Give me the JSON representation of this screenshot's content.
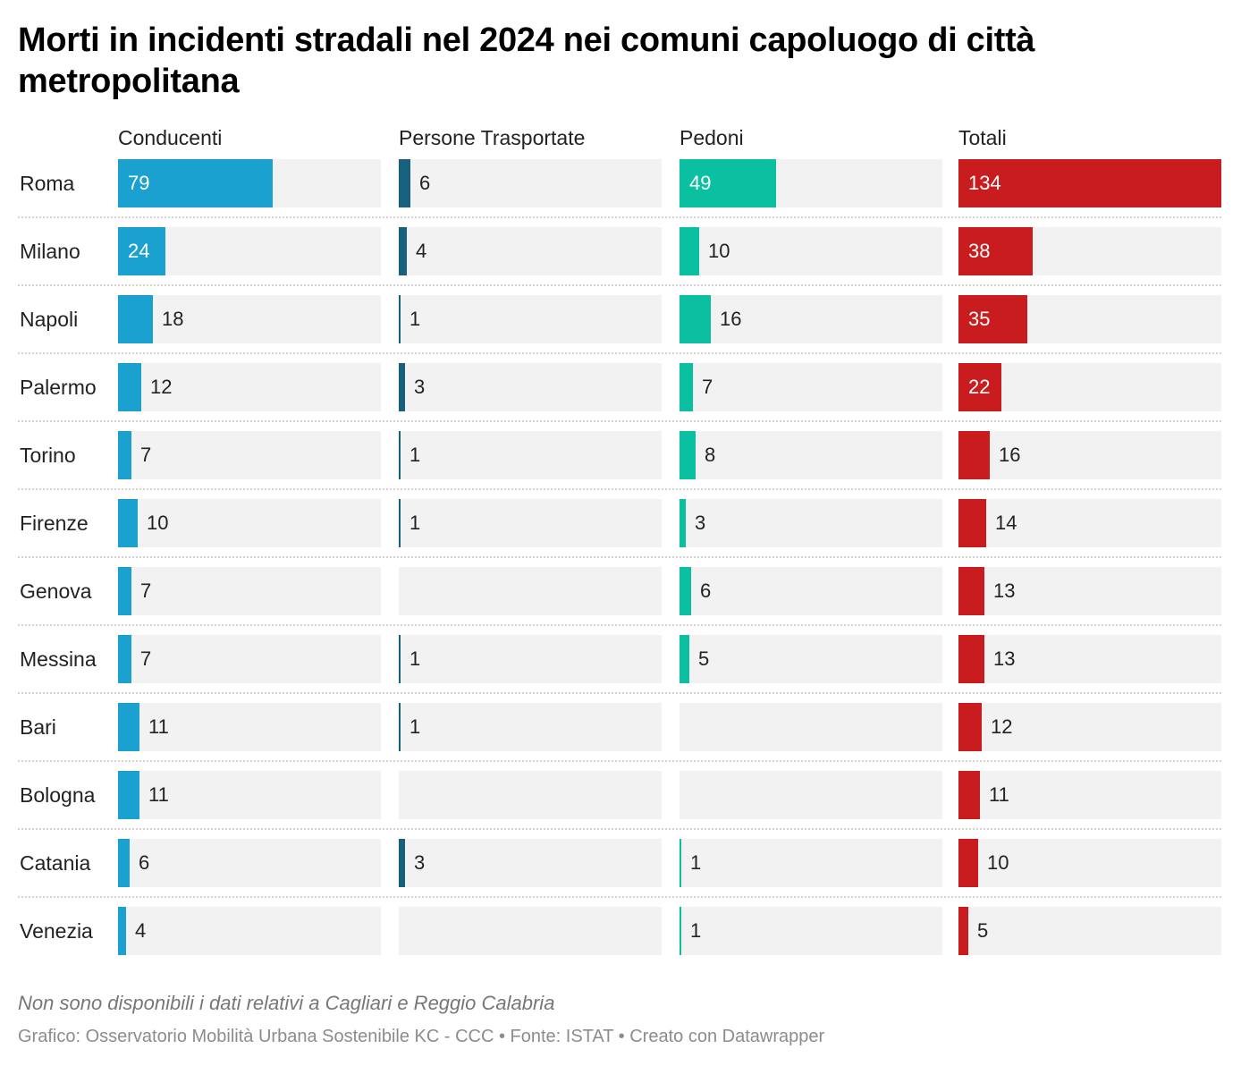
{
  "title": "Morti in incidenti stradali nel 2024 nei comuni capoluogo di città metropolitana",
  "notes": "Non sono disponibili i dati relativi a Cagliari e Reggio Calabria",
  "footer": "Grafico: Osservatorio Mobilità Urbana Sostenibile KC - CCC • Fonte: ISTAT  • Creato con Datawrapper",
  "colors": {
    "Conducenti": "#1aa1d0",
    "Persone Trasportate": "#17607e",
    "Pedoni": "#0bbfa1",
    "Totali": "#c91c1e",
    "track": "#f2f2f2"
  },
  "chart_data": {
    "type": "bar",
    "orientation": "horizontal",
    "layout": "split-bars",
    "categories": [
      "Roma",
      "Milano",
      "Napoli",
      "Palermo",
      "Torino",
      "Firenze",
      "Genova",
      "Messina",
      "Bari",
      "Bologna",
      "Catania",
      "Venezia"
    ],
    "series": [
      {
        "name": "Conducenti",
        "values": [
          79,
          24,
          18,
          12,
          7,
          10,
          7,
          7,
          11,
          11,
          6,
          4
        ]
      },
      {
        "name": "Persone Trasportate",
        "values": [
          6,
          4,
          1,
          3,
          1,
          1,
          null,
          1,
          1,
          null,
          3,
          null
        ]
      },
      {
        "name": "Pedoni",
        "values": [
          49,
          10,
          16,
          7,
          8,
          3,
          6,
          5,
          null,
          null,
          1,
          1
        ]
      },
      {
        "name": "Totali",
        "values": [
          134,
          38,
          35,
          22,
          16,
          14,
          13,
          13,
          12,
          11,
          10,
          5
        ]
      }
    ],
    "xlim": [
      0,
      134
    ],
    "grid": false,
    "legend": "none"
  }
}
